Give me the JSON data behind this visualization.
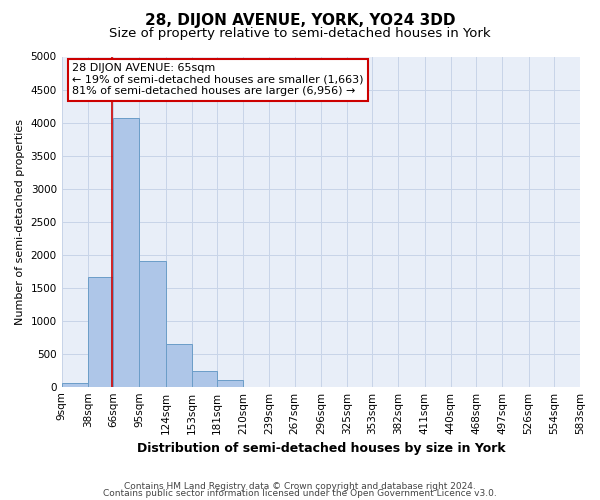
{
  "title": "28, DIJON AVENUE, YORK, YO24 3DD",
  "subtitle": "Size of property relative to semi-detached houses in York",
  "xlabel": "Distribution of semi-detached houses by size in York",
  "ylabel": "Number of semi-detached properties",
  "footer1": "Contains HM Land Registry data © Crown copyright and database right 2024.",
  "footer2": "Contains public sector information licensed under the Open Government Licence v3.0.",
  "bar_edges": [
    9,
    38,
    66,
    95,
    124,
    153,
    181,
    210,
    239,
    267,
    296,
    325,
    353,
    382,
    411,
    440,
    468,
    497,
    526,
    554,
    583
  ],
  "bar_heights": [
    50,
    1663,
    4070,
    1900,
    650,
    230,
    100,
    0,
    0,
    0,
    0,
    0,
    0,
    0,
    0,
    0,
    0,
    0,
    0,
    0
  ],
  "bar_color": "#aec6e8",
  "bar_edgecolor": "#6b9dc8",
  "property_sqm": 65,
  "property_line_color": "#cc0000",
  "annotation_line1": "28 DIJON AVENUE: 65sqm",
  "annotation_line2": "← 19% of semi-detached houses are smaller (1,663)",
  "annotation_line3": "81% of semi-detached houses are larger (6,956) →",
  "annotation_box_color": "#ffffff",
  "annotation_box_edgecolor": "#cc0000",
  "ylim": [
    0,
    5000
  ],
  "yticks": [
    0,
    500,
    1000,
    1500,
    2000,
    2500,
    3000,
    3500,
    4000,
    4500,
    5000
  ],
  "tick_labels": [
    "9sqm",
    "38sqm",
    "66sqm",
    "95sqm",
    "124sqm",
    "153sqm",
    "181sqm",
    "210sqm",
    "239sqm",
    "267sqm",
    "296sqm",
    "325sqm",
    "353sqm",
    "382sqm",
    "411sqm",
    "440sqm",
    "468sqm",
    "497sqm",
    "526sqm",
    "554sqm",
    "583sqm"
  ],
  "grid_color": "#c8d4e8",
  "bg_color": "#e8eef8",
  "title_fontsize": 11,
  "subtitle_fontsize": 9.5,
  "ylabel_fontsize": 8,
  "xlabel_fontsize": 9,
  "tick_fontsize": 7.5,
  "footer_fontsize": 6.5,
  "annot_fontsize": 8
}
